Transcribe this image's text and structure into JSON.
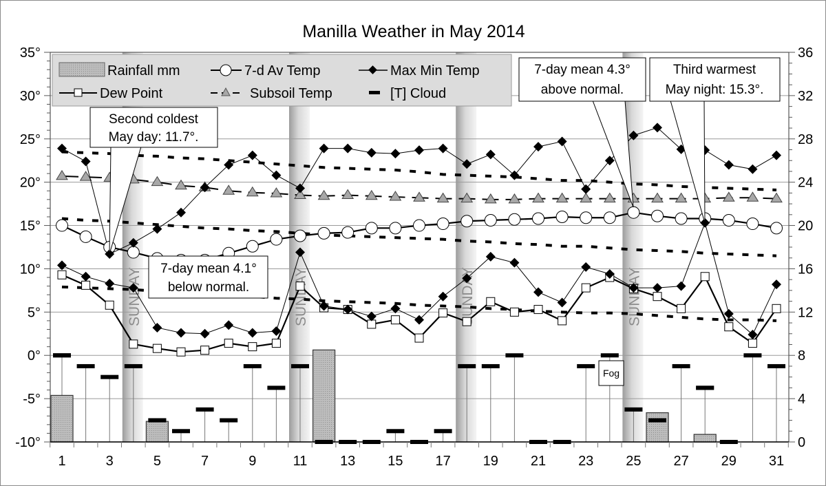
{
  "chart_data": {
    "type": "line",
    "title": "Manilla Weather in May 2014",
    "x": [
      1,
      2,
      3,
      4,
      5,
      6,
      7,
      8,
      9,
      10,
      11,
      12,
      13,
      14,
      15,
      16,
      17,
      18,
      19,
      20,
      21,
      22,
      23,
      24,
      25,
      26,
      27,
      28,
      29,
      30,
      31
    ],
    "x_tick_labels": [
      "1",
      "3",
      "5",
      "7",
      "9",
      "11",
      "13",
      "15",
      "17",
      "19",
      "21",
      "23",
      "25",
      "27",
      "29",
      "31"
    ],
    "y_left": {
      "ylim": [
        -10,
        35
      ],
      "tick_labels": [
        "35°",
        "30°",
        "25°",
        "20°",
        "15°",
        "10°",
        "5°",
        "0°",
        "-5°",
        "-10°"
      ]
    },
    "y_right": {
      "ylim": [
        0,
        36
      ],
      "tick_labels": [
        "36",
        "32",
        "28",
        "24",
        "20",
        "16",
        "12",
        "8",
        "4",
        "0"
      ]
    },
    "grid": true,
    "legend_placement": "top-left",
    "legend": {
      "rainfall": "Rainfall mm",
      "avg7": "7-d Av Temp",
      "maxmin": "Max Min Temp",
      "dew": "Dew Point",
      "subsoil": "Subsoil Temp",
      "cloud": "[T] Cloud"
    },
    "series": [
      {
        "name": "Max Min Temp",
        "key": "max",
        "axis": "left",
        "values": [
          23.9,
          22.4,
          11.7,
          13.0,
          14.6,
          16.5,
          19.4,
          22.0,
          23.1,
          20.8,
          19.3,
          23.9,
          23.9,
          23.4,
          23.3,
          23.7,
          23.9,
          22.1,
          23.2,
          20.8,
          24.1,
          24.7,
          19.2,
          22.5,
          25.4,
          26.3,
          23.8,
          23.7,
          22.0,
          21.5,
          23.1
        ]
      },
      {
        "name": "Max Min Temp",
        "key": "min",
        "axis": "left",
        "values": [
          10.4,
          9.1,
          8.3,
          7.8,
          3.2,
          2.6,
          2.5,
          3.5,
          2.6,
          2.8,
          11.9,
          5.7,
          5.3,
          4.5,
          5.4,
          4.1,
          6.8,
          8.9,
          11.4,
          10.7,
          7.3,
          6.1,
          10.2,
          9.4,
          7.8,
          7.8,
          8.0,
          15.3,
          4.8,
          2.4,
          8.2
        ]
      },
      {
        "name": "7-d Av Temp",
        "key": "avg7",
        "axis": "left",
        "values": [
          15.0,
          13.7,
          12.5,
          11.9,
          11.2,
          11.0,
          11.0,
          11.8,
          12.6,
          13.4,
          13.8,
          14.1,
          14.2,
          14.7,
          14.7,
          15.0,
          15.2,
          15.5,
          15.6,
          15.7,
          15.8,
          16.0,
          15.9,
          15.9,
          16.5,
          16.1,
          15.8,
          15.8,
          15.6,
          15.2,
          14.7
        ]
      },
      {
        "name": "Dew Point",
        "key": "dew",
        "axis": "left",
        "values": [
          9.3,
          8.1,
          5.8,
          1.3,
          0.8,
          0.4,
          0.6,
          1.4,
          1.0,
          1.4,
          8.0,
          5.5,
          5.3,
          3.6,
          4.1,
          2.0,
          4.9,
          3.9,
          6.2,
          5.0,
          5.3,
          4.0,
          7.8,
          9.0,
          7.7,
          6.8,
          5.4,
          9.1,
          3.3,
          1.4,
          5.4
        ]
      },
      {
        "name": "Subsoil Temp",
        "key": "subsoil",
        "axis": "left",
        "values": [
          20.7,
          20.6,
          20.5,
          20.3,
          20.0,
          19.6,
          19.4,
          19.0,
          18.8,
          18.7,
          18.5,
          18.4,
          18.5,
          18.4,
          18.3,
          18.2,
          18.1,
          18.1,
          18.0,
          18.0,
          18.1,
          18.1,
          18.1,
          18.1,
          18.1,
          18.1,
          18.1,
          18.1,
          18.2,
          18.2,
          18.1
        ]
      },
      {
        "key": "normal_max",
        "axis": "left",
        "values": [
          23.5,
          23.4,
          23.3,
          23.1,
          23.0,
          22.8,
          22.7,
          22.5,
          22.3,
          22.1,
          21.9,
          21.7,
          21.6,
          21.5,
          21.4,
          21.2,
          20.9,
          20.8,
          20.7,
          20.6,
          20.4,
          20.2,
          20.2,
          20.0,
          19.8,
          19.7,
          19.5,
          19.4,
          19.3,
          19.2,
          19.1
        ]
      },
      {
        "key": "normal_avg",
        "axis": "left",
        "values": [
          15.8,
          15.6,
          15.5,
          15.3,
          15.1,
          14.9,
          14.7,
          14.6,
          14.4,
          14.3,
          14.1,
          13.9,
          13.8,
          13.7,
          13.6,
          13.5,
          13.4,
          13.2,
          13.1,
          12.9,
          12.8,
          12.6,
          12.6,
          12.4,
          12.2,
          12.1,
          12.0,
          11.8,
          11.7,
          11.6,
          11.5
        ]
      },
      {
        "key": "normal_min",
        "axis": "left",
        "values": [
          7.9,
          7.8,
          7.7,
          7.6,
          7.4,
          7.3,
          7.1,
          7.0,
          6.8,
          6.6,
          6.5,
          6.3,
          6.2,
          6.1,
          6.0,
          5.8,
          5.7,
          5.6,
          5.4,
          5.3,
          5.1,
          5.0,
          4.9,
          4.9,
          4.8,
          4.6,
          4.4,
          4.2,
          4.1,
          4.1,
          4.0
        ]
      },
      {
        "name": "Rainfall mm",
        "key": "rain",
        "type": "bar",
        "axis": "right",
        "values": [
          4.3,
          0,
          0,
          0,
          1.9,
          0,
          0,
          0,
          0,
          0,
          0,
          8.5,
          0,
          0,
          0,
          0,
          0,
          0,
          0,
          0,
          0,
          0,
          0,
          0,
          0,
          2.7,
          0,
          0.7,
          0,
          0,
          0
        ]
      },
      {
        "name": "[T] Cloud",
        "key": "cloud",
        "axis": "right",
        "values": [
          8,
          7,
          6,
          7,
          2,
          1,
          3,
          2,
          7,
          5,
          7,
          0,
          0,
          0,
          1,
          0,
          1,
          7,
          7,
          8,
          0,
          0,
          7,
          8,
          3,
          2,
          7,
          5,
          0,
          8,
          7
        ]
      }
    ],
    "sundays": [
      4,
      11,
      18,
      25
    ],
    "sunday_label": "SUNDAY",
    "annotations": {
      "cold_day": {
        "line1": "Second coldest",
        "line2": "May day: 11.7°."
      },
      "below": {
        "line1": "7-day mean 4.1°",
        "line2": "below normal."
      },
      "above": {
        "line1": "7-day mean 4.3°",
        "line2": "above normal."
      },
      "warm_night": {
        "line1": "Third warmest",
        "line2": "May night: 15.3°."
      },
      "fog": "Fog"
    },
    "colors": {
      "rain_fill": "#b4b4b4",
      "subsoil_marker": "#a8a8a8",
      "legend_bg": "#dcdcdc",
      "sunday_band": "#a0a0a0",
      "grid": "#9a9a9a"
    }
  }
}
